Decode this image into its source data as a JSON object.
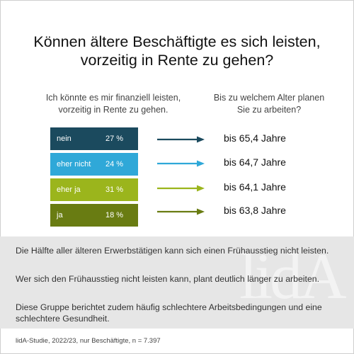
{
  "title_line1": "Können ältere Beschäftigte es sich leisten,",
  "title_line2": "vorzeitig in Rente zu gehen?",
  "left_heading_line1": "Ich könnte es mir finanziell leisten,",
  "left_heading_line2": "vorzeitig in Rente zu gehen.",
  "right_heading_line1": "Bis zu welchem Alter planen",
  "right_heading_line2": "Sie zu arbeiten?",
  "chart_data": {
    "type": "bar",
    "categories": [
      "nein",
      "eher nicht",
      "eher ja",
      "ja"
    ],
    "values": [
      27,
      24,
      31,
      18
    ],
    "value_labels": [
      "27 %",
      "24 %",
      "31 %",
      "18 %"
    ],
    "colors": [
      "#1b4a5e",
      "#2fa8d8",
      "#9bb51c",
      "#697c12"
    ],
    "planned_age_values": [
      65.4,
      64.7,
      64.1,
      63.8
    ],
    "planned_age_labels": [
      "bis 65,4 Jahre",
      "bis 64,7 Jahre",
      "bis 64,1 Jahre",
      "bis 63,8 Jahre"
    ]
  },
  "notes": [
    "Die Hälfte aller älteren Erwerbstätigen kann sich einen Frühausstieg nicht leisten.",
    "Wer sich den Frühausstieg nicht leisten kann, plant deutlich länger zu arbeiten.",
    "Diese Gruppe berichtet zudem häufig schlechtere Arbeitsbedingungen und eine schlechtere Gesundheit."
  ],
  "watermark_text": "lidA",
  "source": "lidA-Studie, 2022/23, nur Beschäftigte, n = 7.397"
}
